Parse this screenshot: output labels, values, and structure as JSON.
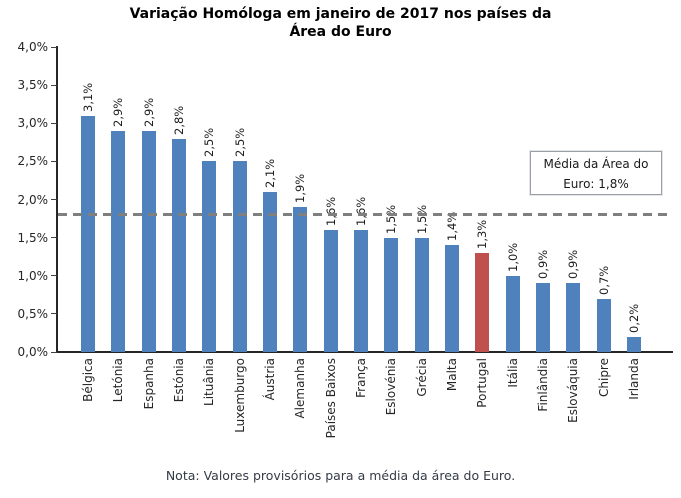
{
  "title": {
    "line1": "Variação Homóloga em janeiro de 2017 nos países da",
    "line2": "Área do Euro"
  },
  "annotation": {
    "line1": "Média da Área do",
    "line2": "Euro: 1,8%"
  },
  "note": "Nota: Valores provisórios para a média da área do Euro.",
  "chart_data": {
    "type": "bar",
    "title": "Variação Homóloga em janeiro de 2017 nos países da Área do Euro",
    "categories": [
      "Bélgica",
      "Letónia",
      "Espanha",
      "Estónia",
      "Lituânia",
      "Luxemburgo",
      "Áustria",
      "Alemanha",
      "Países Baixos",
      "França",
      "Eslovénia",
      "Grécia",
      "Malta",
      "Portugal",
      "Itália",
      "Finlândia",
      "Eslováquia",
      "Chipre",
      "Irlanda"
    ],
    "values": [
      3.1,
      2.9,
      2.9,
      2.8,
      2.5,
      2.5,
      2.1,
      1.9,
      1.6,
      1.6,
      1.5,
      1.5,
      1.4,
      1.3,
      1.0,
      0.9,
      0.9,
      0.7,
      0.2
    ],
    "value_labels": [
      "3,1%",
      "2,9%",
      "2,9%",
      "2,8%",
      "2,5%",
      "2,5%",
      "2,1%",
      "1,9%",
      "1,6%",
      "1,6%",
      "1,5%",
      "1,5%",
      "1,4%",
      "1,3%",
      "1,0%",
      "0,9%",
      "0,9%",
      "0,7%",
      "0,2%"
    ],
    "ylim": [
      0,
      4
    ],
    "ytick_step": 0.5,
    "ytick_labels_top_to_bottom": [
      "4,0%",
      "3,5%",
      "3,0%",
      "2,5%",
      "2,0%",
      "1,5%",
      "1,0%",
      "0,5%",
      "0,0%"
    ],
    "grid": false,
    "legend_position": "annotation-box-right",
    "mean_line": {
      "value": 1.8,
      "label": "Média da Área do Euro: 1,8%",
      "color": "#7f7f7f",
      "style": "dashed"
    },
    "highlight_category": "Portugal",
    "bar_color": "#4F81BD",
    "highlight_color": "#C0504D",
    "xlabel": "",
    "ylabel": ""
  }
}
